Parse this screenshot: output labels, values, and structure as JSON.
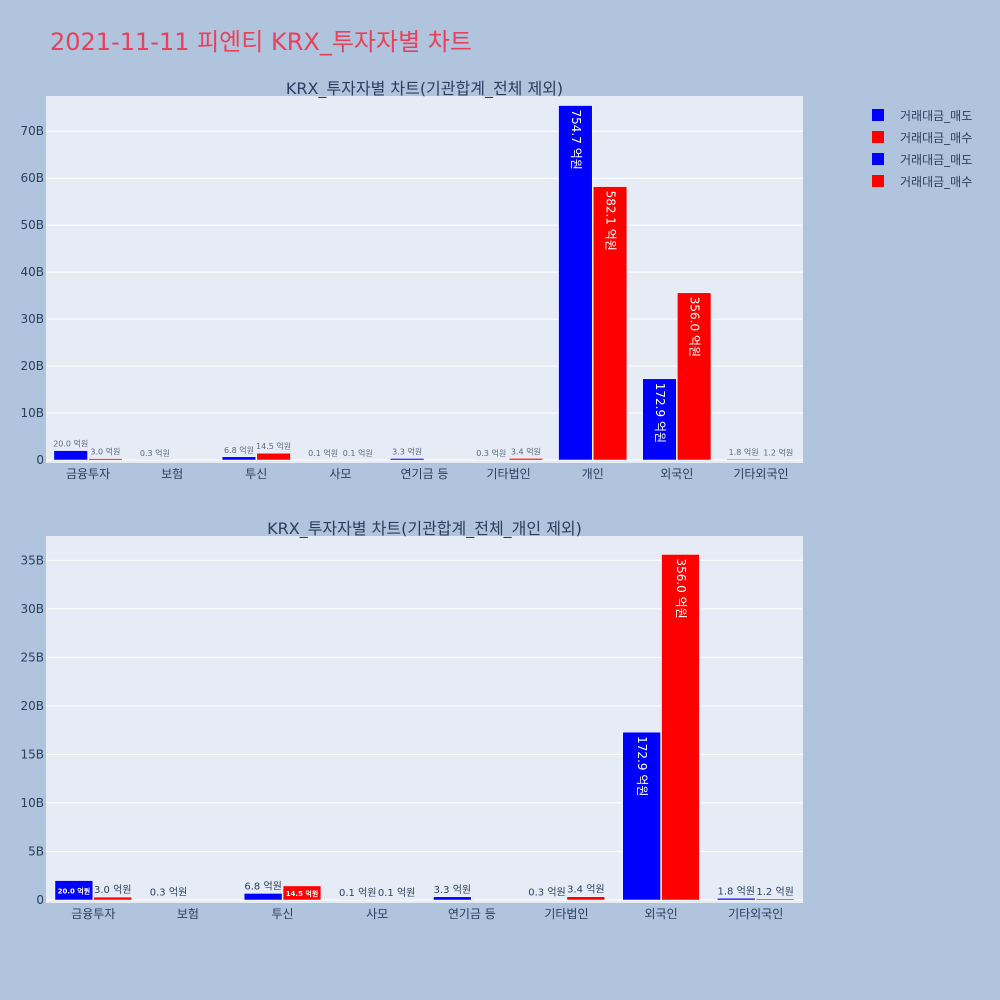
{
  "title": "2021-11-11 피엔티 KRX_투자자별 차트",
  "legend": [
    {
      "label": "거래대금_매도",
      "color": "#0000ff"
    },
    {
      "label": "거래대금_매수",
      "color": "#ff0000"
    },
    {
      "label": "거래대금_매도",
      "color": "#0000ff"
    },
    {
      "label": "거래대금_매수",
      "color": "#ff0000"
    }
  ],
  "chart_data": [
    {
      "type": "bar",
      "title": "KRX_투자자별 차트(기관합계_전체 제외)",
      "categories": [
        "금융투자",
        "보험",
        "투신",
        "사모",
        "연기금 등",
        "기타법인",
        "개인",
        "외국인",
        "기타외국인"
      ],
      "series": [
        {
          "name": "거래대금_매도",
          "color": "#0000ff",
          "values": [
            2.0,
            0.03,
            0.68,
            0.01,
            0.33,
            0.03,
            75.47,
            17.29,
            0.18
          ],
          "labels": [
            "20.0 억원",
            "0.3 억원",
            "6.8 억원",
            "0.1 억원",
            "3.3 억원",
            "0.3 억원",
            "754.7 억원",
            "172.9 억원",
            "1.8 억원"
          ]
        },
        {
          "name": "거래대금_매수",
          "color": "#ff0000",
          "values": [
            0.3,
            0,
            1.45,
            0.01,
            0,
            0.34,
            58.21,
            35.6,
            0.12
          ],
          "labels": [
            "3.0 억원",
            "",
            "14.5 억원",
            "0.1 억원",
            "",
            "3.4 억원",
            "582.1 억원",
            "356.0 억원",
            "1.2 억원"
          ]
        }
      ],
      "yticks": [
        0,
        10,
        20,
        30,
        40,
        50,
        60,
        70
      ],
      "ytick_labels": [
        "0",
        "10B",
        "20B",
        "30B",
        "40B",
        "50B",
        "60B",
        "70B"
      ],
      "ylim": [
        0,
        77.5
      ],
      "grid": true,
      "legend_position": "right"
    },
    {
      "type": "bar",
      "title": "KRX_투자자별 차트(기관합계_전체_개인 제외)",
      "categories": [
        "금융투자",
        "보험",
        "투신",
        "사모",
        "연기금 등",
        "기타법인",
        "외국인",
        "기타외국인"
      ],
      "series": [
        {
          "name": "거래대금_매도",
          "color": "#0000ff",
          "values": [
            2.0,
            0.03,
            0.68,
            0.01,
            0.33,
            0.03,
            17.29,
            0.18
          ],
          "labels": [
            "20.0 억원",
            "0.3 억원",
            "6.8 억원",
            "0.1 억원",
            "3.3 억원",
            "0.3 억원",
            "172.9 억원",
            "1.8 억원"
          ]
        },
        {
          "name": "거래대금_매수",
          "color": "#ff0000",
          "values": [
            0.3,
            0,
            1.45,
            0.01,
            0,
            0.34,
            35.6,
            0.12
          ],
          "labels": [
            "3.0 억원",
            "",
            "14.5 억원",
            "0.1 억원",
            "",
            "3.4 억원",
            "356.0 억원",
            "1.2 억원"
          ]
        }
      ],
      "yticks": [
        0,
        5,
        10,
        15,
        20,
        25,
        30,
        35
      ],
      "ytick_labels": [
        "0",
        "5B",
        "10B",
        "15B",
        "20B",
        "25B",
        "30B",
        "35B"
      ],
      "ylim": [
        0,
        37.5
      ],
      "grid": true,
      "legend_position": "right"
    }
  ]
}
